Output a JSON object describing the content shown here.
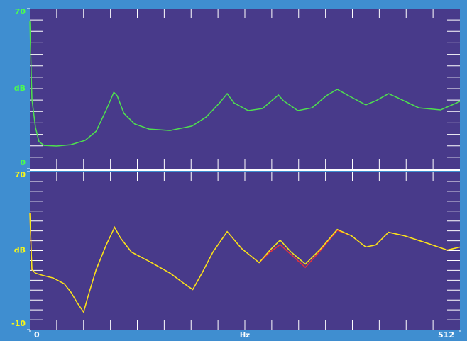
{
  "chart_data": [
    {
      "type": "line",
      "ylabel": "dB",
      "ylim": [
        0,
        70
      ],
      "yticks": [
        0,
        70
      ],
      "xlim": [
        0,
        512
      ],
      "x": [
        0,
        2.5,
        6.8,
        11,
        17,
        32,
        49,
        66,
        79,
        91,
        100,
        104,
        112,
        125,
        142,
        167,
        193,
        210,
        226,
        235,
        243,
        260,
        277,
        290,
        296,
        302,
        319,
        336,
        353,
        366,
        378,
        400,
        412,
        427,
        438,
        463,
        489,
        512
      ],
      "series": [
        {
          "name": "green",
          "color": "#4ee04e",
          "values": [
            64.4,
            30.4,
            18,
            11.8,
            10.2,
            9.9,
            10.5,
            12.4,
            16.4,
            25.7,
            33.4,
            31.9,
            24.2,
            19.5,
            17.3,
            16.7,
            18.6,
            22.6,
            28.8,
            32.8,
            28.8,
            25.4,
            26.3,
            30.4,
            32.2,
            29.7,
            25.4,
            26.6,
            31.9,
            34.7,
            32.2,
            27.9,
            29.7,
            32.8,
            31,
            26.6,
            25.7,
            29.4
          ]
        }
      ]
    },
    {
      "type": "line",
      "ylabel": "dB",
      "ylim": [
        -10,
        70
      ],
      "yticks": [
        -10,
        70
      ],
      "xlabel": "Hz",
      "xlim": [
        0,
        512
      ],
      "xticks": [
        0,
        512
      ],
      "x": [
        0,
        2.5,
        6.8,
        15,
        28,
        41,
        49,
        57,
        64,
        70,
        79,
        91,
        101,
        108,
        121,
        142,
        167,
        184,
        194,
        205,
        218,
        235,
        252,
        273,
        286,
        298,
        311,
        328,
        345,
        366,
        383,
        400,
        412,
        427,
        446,
        472,
        497,
        512
      ],
      "series": [
        {
          "name": "red",
          "color": "#e8303a",
          "values": [
            48.9,
            20.4,
            18.6,
            17.5,
            16.1,
            13.2,
            8.9,
            3.2,
            -1.1,
            7.9,
            20.4,
            32.9,
            41.8,
            36.4,
            29.3,
            24.6,
            18.6,
            13.2,
            10.3,
            18.6,
            29.3,
            39.6,
            31.1,
            23.9,
            29.3,
            33,
            28,
            21.5,
            29.5,
            40.2,
            37.5,
            31.8,
            32.9,
            39.3,
            37.5,
            33.9,
            30.3,
            31.8
          ]
        },
        {
          "name": "yellow",
          "color": "#f4e81c",
          "values": [
            48.9,
            20.4,
            18.6,
            17.5,
            16.1,
            13.2,
            8.9,
            3.2,
            -1.1,
            7.9,
            20.4,
            32.9,
            41.8,
            36.4,
            29.3,
            24.6,
            18.6,
            13.2,
            10.3,
            18.6,
            29.3,
            39.6,
            31.1,
            23.9,
            30.3,
            35.3,
            29.3,
            23.2,
            30.3,
            40.7,
            37.5,
            31.8,
            32.9,
            39.3,
            37.5,
            33.9,
            30.3,
            31.8
          ]
        }
      ]
    }
  ]
}
